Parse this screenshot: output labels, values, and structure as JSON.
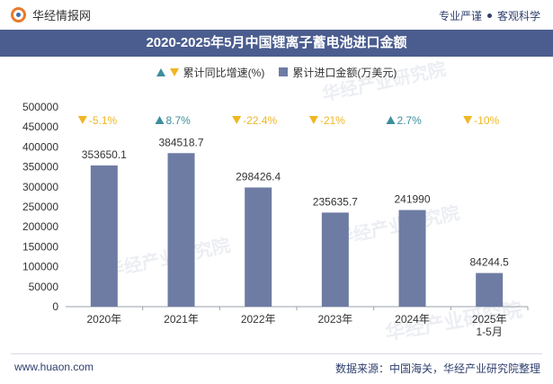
{
  "header": {
    "brand": "华经情报网",
    "slogan_left": "专业严谨",
    "slogan_right": "客观科学"
  },
  "watermark_text": "华经产业研究院",
  "chart_data": {
    "type": "bar",
    "title": "2020-2025年5月中国锂离子蓄电池进口金额",
    "categories": [
      "2020年",
      "2021年",
      "2022年",
      "2023年",
      "2024年",
      "2025年\n1-5月"
    ],
    "series": [
      {
        "name": "累计进口金额(万美元)",
        "values": [
          353650.1,
          384518.7,
          298426.4,
          235635.7,
          241990,
          84244.5
        ],
        "color": "#6e7ca4"
      },
      {
        "name": "累计同比增速(%)",
        "values": [
          -5.1,
          8.7,
          -22.4,
          -21,
          2.7,
          -10
        ],
        "labels": [
          "-5.1%",
          "8.7%",
          "-22.4%",
          "-21%",
          "2.7%",
          "-10%"
        ],
        "up_color": "#3e8e9c",
        "down_color": "#f0b623"
      }
    ],
    "bar_labels": [
      "353650.1",
      "384518.7",
      "298426.4",
      "235635.7",
      "241990",
      "84244.5"
    ],
    "ylim": [
      0,
      500000
    ],
    "yticks": [
      0,
      50000,
      100000,
      150000,
      200000,
      250000,
      300000,
      350000,
      400000,
      450000,
      500000
    ],
    "xlabel": "",
    "ylabel": "",
    "grid": false,
    "legend_position": "top"
  },
  "footer": {
    "url": "www.huaon.com",
    "source": "数据来源：中国海关，华经产业研究院整理"
  }
}
